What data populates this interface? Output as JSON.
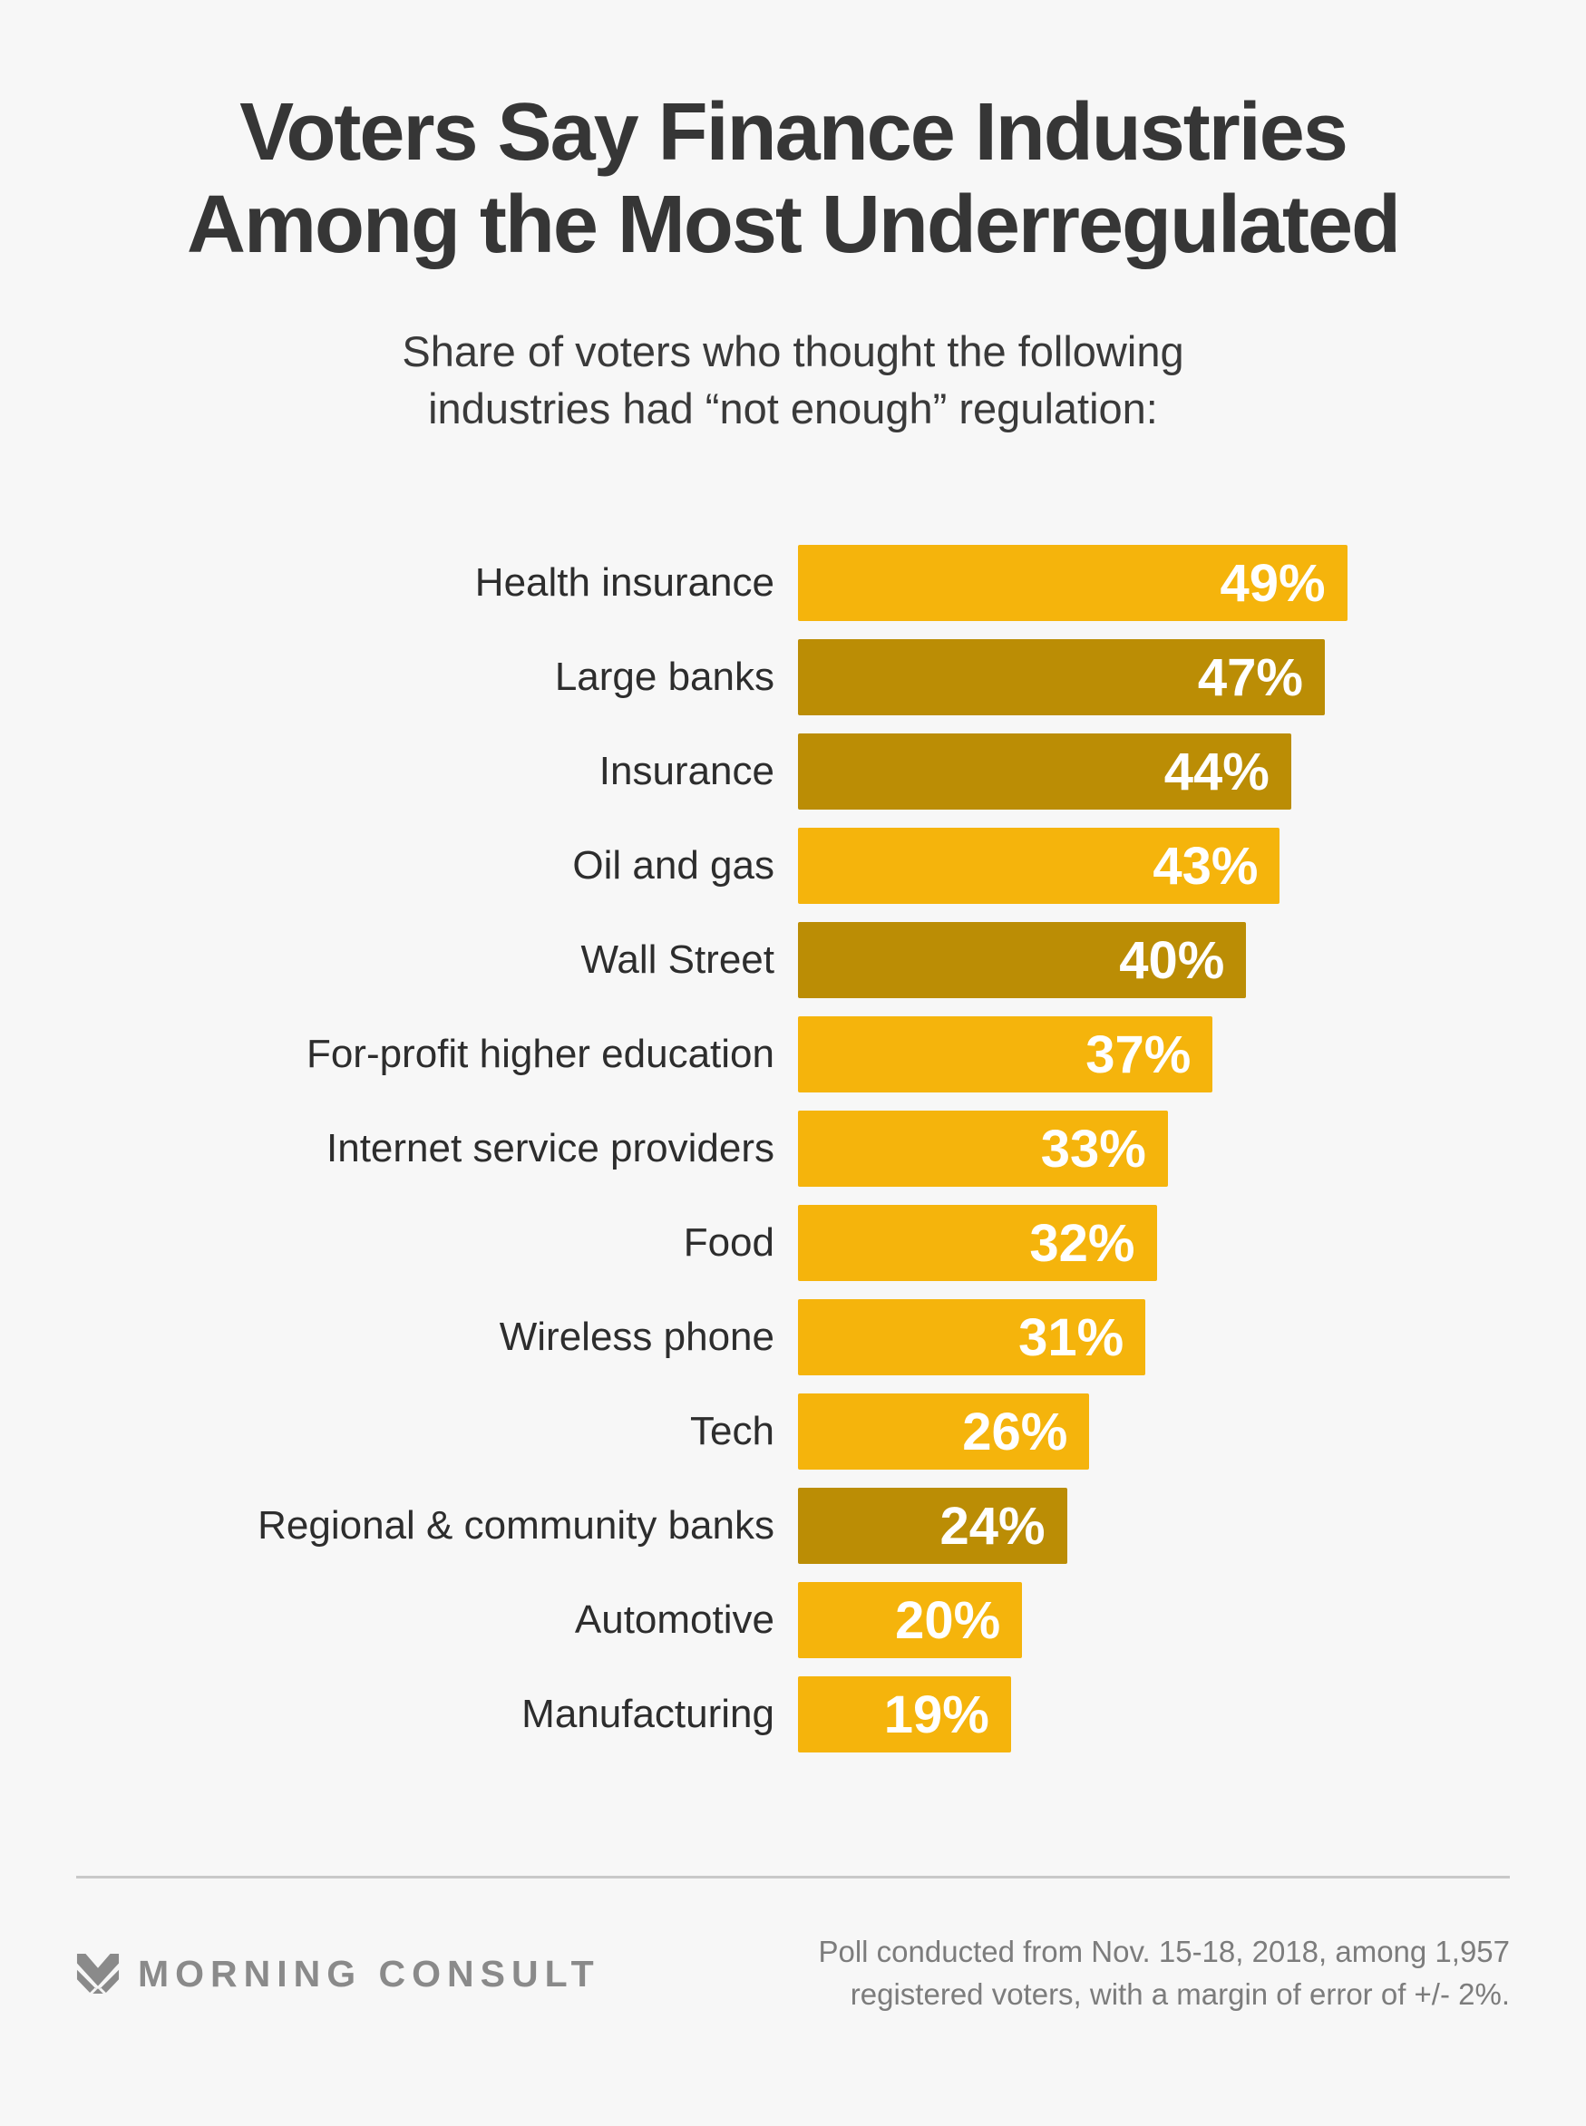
{
  "header": {
    "title": "Voters Say Finance Industries\nAmong the Most Underregulated",
    "subtitle": "Share of voters who thought the following\nindustries had “not enough” regulation:"
  },
  "chart_data": {
    "type": "bar",
    "orientation": "horizontal",
    "title": "Voters Say Finance Industries Among the Most Underregulated",
    "subtitle": "Share of voters who thought the following industries had “not enough” regulation:",
    "categories": [
      "Health insurance",
      "Large banks",
      "Insurance",
      "Oil and gas",
      "Wall Street",
      "For-profit higher education",
      "Internet service providers",
      "Food",
      "Wireless phone",
      "Tech",
      "Regional & community banks",
      "Automotive",
      "Manufacturing"
    ],
    "values": [
      49,
      47,
      44,
      43,
      40,
      37,
      33,
      32,
      31,
      26,
      24,
      20,
      19
    ],
    "value_suffix": "%",
    "highlighted_finance_bars": [
      false,
      true,
      true,
      false,
      true,
      false,
      false,
      false,
      false,
      false,
      true,
      false,
      false
    ],
    "colors": {
      "default": "#F5B40C",
      "highlight": "#BB8D05",
      "value_text": "#FFFFFF"
    },
    "xlim": [
      0,
      50
    ],
    "grid": false,
    "legend": false,
    "value_labels_position": "inside-right"
  },
  "footer": {
    "logo_text": "MORNING CONSULT",
    "note": "Poll conducted from Nov. 15-18, 2018, among 1,957\nregistered voters, with a margin of error of +/- 2%."
  },
  "style_tokens": {
    "background": "#F7F7F7",
    "title_color": "#363636",
    "label_color": "#2D2D2D",
    "footer_gray": "#8A8A8A",
    "divider_color": "#C9C9C9"
  }
}
